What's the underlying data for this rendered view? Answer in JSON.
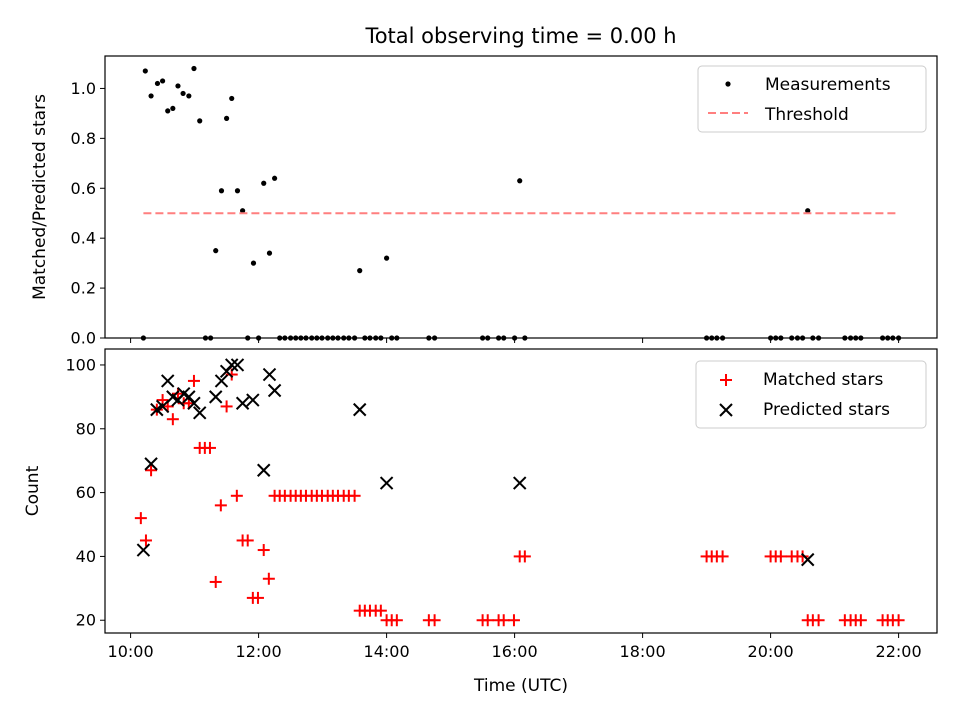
{
  "figure": {
    "title": "Total observing time = 0.00 h"
  },
  "chart_data": [
    {
      "type": "scatter",
      "panel": "top",
      "title": "Total observing time = 0.00 h",
      "xlabel": "",
      "ylabel": "Matched/Predicted stars",
      "x_unit": "hours UTC",
      "xlim": [
        9.6,
        22.6
      ],
      "ylim": [
        0,
        1.13
      ],
      "yticks": [
        0.0,
        0.2,
        0.4,
        0.6,
        0.8,
        1.0
      ],
      "ytick_labels": [
        "0.0",
        "0.2",
        "0.4",
        "0.6",
        "0.8",
        "1.0"
      ],
      "xticks": [
        10,
        12,
        14,
        16,
        18,
        20,
        22
      ],
      "xtick_labels": [
        "",
        "",
        "",
        "",
        "",
        "",
        ""
      ],
      "grid": false,
      "legend_position": "top-right",
      "series": [
        {
          "name": "Measurements",
          "marker": "dot",
          "color": "#000000",
          "x": [
            10.2,
            10.23,
            10.32,
            10.42,
            10.5,
            10.58,
            10.66,
            10.74,
            10.82,
            10.91,
            10.99,
            11.08,
            11.17,
            11.25,
            11.33,
            11.42,
            11.5,
            11.58,
            11.67,
            11.75,
            11.83,
            11.92,
            12.0,
            12.08,
            12.17,
            12.25,
            12.33,
            12.41,
            12.5,
            12.58,
            12.66,
            12.74,
            12.83,
            12.91,
            12.99,
            13.08,
            13.16,
            13.24,
            13.33,
            13.41,
            13.5,
            13.58,
            13.66,
            13.74,
            13.83,
            13.91,
            14.0,
            14.08,
            14.16,
            14.66,
            14.75,
            15.5,
            15.58,
            15.75,
            15.83,
            16.0,
            16.08,
            16.16,
            19.0,
            19.08,
            19.16,
            19.25,
            20.0,
            20.08,
            20.16,
            20.33,
            20.42,
            20.5,
            20.58,
            20.66,
            20.75,
            21.16,
            21.25,
            21.33,
            21.41,
            21.75,
            21.83,
            21.91,
            22.0
          ],
          "y": [
            0.0,
            1.07,
            0.97,
            1.02,
            1.03,
            0.91,
            0.92,
            1.01,
            0.98,
            0.97,
            1.08,
            0.87,
            0.0,
            0.0,
            0.35,
            0.59,
            0.88,
            0.96,
            0.59,
            0.51,
            0.0,
            0.3,
            0.0,
            0.62,
            0.34,
            0.64,
            0.0,
            0.0,
            0.0,
            0.0,
            0.0,
            0.0,
            0.0,
            0.0,
            0.0,
            0.0,
            0.0,
            0.0,
            0.0,
            0.0,
            0.0,
            0.27,
            0.0,
            0.0,
            0.0,
            0.0,
            0.32,
            0.0,
            0.0,
            0.0,
            0.0,
            0.0,
            0.0,
            0.0,
            0.0,
            0.0,
            0.63,
            0.0,
            0.0,
            0.0,
            0.0,
            0.0,
            0.0,
            0.0,
            0.0,
            0.0,
            0.0,
            0.0,
            0.51,
            0.0,
            0.0,
            0.0,
            0.0,
            0.0,
            0.0,
            0.0,
            0.0,
            0.0,
            0.0
          ]
        },
        {
          "name": "Threshold",
          "marker": "dashed-line",
          "color": "#ff7f7f",
          "x": [
            10.2,
            22.0
          ],
          "y": [
            0.5,
            0.5
          ]
        }
      ]
    },
    {
      "type": "scatter",
      "panel": "bottom",
      "title": "",
      "xlabel": "Time (UTC)",
      "ylabel": "Count",
      "x_unit": "hours UTC",
      "xlim": [
        9.6,
        22.6
      ],
      "ylim": [
        16,
        105
      ],
      "yticks": [
        20,
        40,
        60,
        80,
        100
      ],
      "ytick_labels": [
        "20",
        "40",
        "60",
        "80",
        "100"
      ],
      "xticks": [
        10,
        12,
        14,
        16,
        18,
        20,
        22
      ],
      "xtick_labels": [
        "10:00",
        "12:00",
        "14:00",
        "16:00",
        "18:00",
        "20:00",
        "22:00"
      ],
      "grid": false,
      "legend_position": "top-right",
      "series": [
        {
          "name": "Matched stars",
          "marker": "plus",
          "color": "#ff0000",
          "x": [
            10.16,
            10.24,
            10.32,
            10.41,
            10.5,
            10.58,
            10.66,
            10.74,
            10.83,
            10.91,
            10.99,
            11.08,
            11.16,
            11.24,
            11.33,
            11.41,
            11.5,
            11.58,
            11.66,
            11.75,
            11.83,
            11.91,
            11.99,
            12.08,
            12.16,
            12.25,
            12.33,
            12.41,
            12.5,
            12.58,
            12.66,
            12.74,
            12.83,
            12.91,
            12.99,
            13.08,
            13.16,
            13.24,
            13.33,
            13.41,
            13.5,
            13.58,
            13.66,
            13.74,
            13.83,
            13.91,
            14.0,
            14.08,
            14.16,
            14.66,
            14.75,
            15.5,
            15.58,
            15.75,
            15.83,
            15.99,
            16.08,
            16.16,
            19.0,
            19.08,
            19.16,
            19.25,
            20.0,
            20.08,
            20.16,
            20.33,
            20.42,
            20.5,
            20.58,
            20.66,
            20.75,
            21.16,
            21.25,
            21.33,
            21.41,
            21.75,
            21.83,
            21.91,
            22.0
          ],
          "y": [
            52,
            45,
            67,
            86,
            89,
            87,
            83,
            91,
            88,
            88,
            95,
            74,
            74,
            74,
            32,
            56,
            87,
            97,
            59,
            45,
            45,
            27,
            27,
            42,
            33,
            59,
            59,
            59,
            59,
            59,
            59,
            59,
            59,
            59,
            59,
            59,
            59,
            59,
            59,
            59,
            59,
            23,
            23,
            23,
            23,
            23,
            20,
            20,
            20,
            20,
            20,
            20,
            20,
            20,
            20,
            20,
            40,
            40,
            40,
            40,
            40,
            40,
            40,
            40,
            40,
            40,
            40,
            40,
            20,
            20,
            20,
            20,
            20,
            20,
            20,
            20,
            20,
            20,
            20
          ]
        },
        {
          "name": "Predicted stars",
          "marker": "x",
          "color": "#000000",
          "x": [
            10.2,
            10.32,
            10.41,
            10.5,
            10.58,
            10.66,
            10.74,
            10.83,
            10.91,
            10.99,
            11.08,
            11.33,
            11.42,
            11.5,
            11.58,
            11.67,
            11.75,
            11.91,
            12.08,
            12.17,
            12.25,
            13.58,
            14.0,
            16.08,
            20.58
          ],
          "y": [
            42,
            69,
            86,
            87,
            95,
            90,
            89,
            91,
            90,
            88,
            85,
            90,
            95,
            98,
            100,
            100,
            88,
            89,
            67,
            97,
            92,
            86,
            63,
            63,
            39
          ]
        }
      ]
    }
  ]
}
